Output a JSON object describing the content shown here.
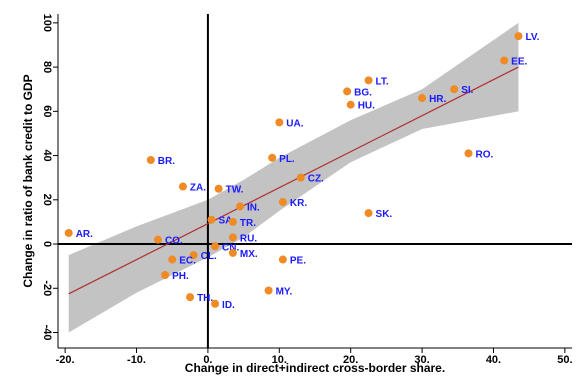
{
  "chart_data": {
    "type": "scatter",
    "xlabel": "Change in direct+indirect cross-border share.",
    "ylabel": "Change in ratio of bank credit to GDP",
    "xlim": [
      -21,
      51
    ],
    "ylim": [
      -47,
      104
    ],
    "x_ticks": [
      -20,
      -10,
      0,
      10,
      20,
      30,
      40,
      50
    ],
    "x_tick_labels": [
      "-20.",
      "-10.",
      "0.",
      "10.",
      "20.",
      "30.",
      "40.",
      "50."
    ],
    "y_ticks": [
      -40,
      -20,
      0,
      20,
      40,
      60,
      80,
      100
    ],
    "y_tick_labels": [
      "-40",
      "-20",
      "0",
      "20",
      "40",
      "60",
      "80",
      "100"
    ],
    "reference_lines": {
      "x": 0,
      "y": 0
    },
    "fit_line": {
      "x": [
        -19.5,
        43.5
      ],
      "y": [
        -22.5,
        80
      ]
    },
    "confidence_band": {
      "x": [
        -19.5,
        -10,
        0,
        5,
        10,
        20,
        30,
        43.5
      ],
      "upper": [
        -5,
        8,
        20,
        29,
        39,
        56,
        70,
        100
      ],
      "lower": [
        -40,
        -22,
        -6,
        3,
        15,
        37,
        52,
        60
      ]
    },
    "marker_color": "#f08a24",
    "label_color": "#1a1aff",
    "fit_color": "#b03030",
    "band_color": "#c3c3c3",
    "points": [
      {
        "label": "LV.",
        "x": 43.5,
        "y": 94
      },
      {
        "label": "EE.",
        "x": 41.5,
        "y": 83
      },
      {
        "label": "LT.",
        "x": 22.5,
        "y": 74
      },
      {
        "label": "BG.",
        "x": 19.5,
        "y": 69
      },
      {
        "label": "HU.",
        "x": 20,
        "y": 63
      },
      {
        "label": "SI.",
        "x": 34.5,
        "y": 70
      },
      {
        "label": "HR.",
        "x": 30,
        "y": 66
      },
      {
        "label": "RO.",
        "x": 36.5,
        "y": 41
      },
      {
        "label": "UA.",
        "x": 10,
        "y": 55
      },
      {
        "label": "PL.",
        "x": 9,
        "y": 39
      },
      {
        "label": "CZ.",
        "x": 13,
        "y": 30
      },
      {
        "label": "BR.",
        "x": -8,
        "y": 38
      },
      {
        "label": "ZA.",
        "x": -3.5,
        "y": 26
      },
      {
        "label": "TW.",
        "x": 1.5,
        "y": 25
      },
      {
        "label": "SK.",
        "x": 22.5,
        "y": 14
      },
      {
        "label": "KR.",
        "x": 10.5,
        "y": 19
      },
      {
        "label": "IN.",
        "x": 4.5,
        "y": 17
      },
      {
        "label": "SA.",
        "x": 0.5,
        "y": 11
      },
      {
        "label": "TR.",
        "x": 3.5,
        "y": 10
      },
      {
        "label": "RU.",
        "x": 3.5,
        "y": 3
      },
      {
        "label": "CN.",
        "x": 1,
        "y": -1
      },
      {
        "label": "AR.",
        "x": -19.5,
        "y": 5
      },
      {
        "label": "CO.",
        "x": -7,
        "y": 2
      },
      {
        "label": "MX.",
        "x": 3.5,
        "y": -4
      },
      {
        "label": "CL.",
        "x": -2,
        "y": -5
      },
      {
        "label": "EC.",
        "x": -5,
        "y": -7
      },
      {
        "label": "PE.",
        "x": 10.5,
        "y": -7
      },
      {
        "label": "PH.",
        "x": -6,
        "y": -14
      },
      {
        "label": "MY.",
        "x": 8.5,
        "y": -21
      },
      {
        "label": "TH.",
        "x": -2.5,
        "y": -24
      },
      {
        "label": "ID.",
        "x": 1,
        "y": -27
      }
    ]
  }
}
